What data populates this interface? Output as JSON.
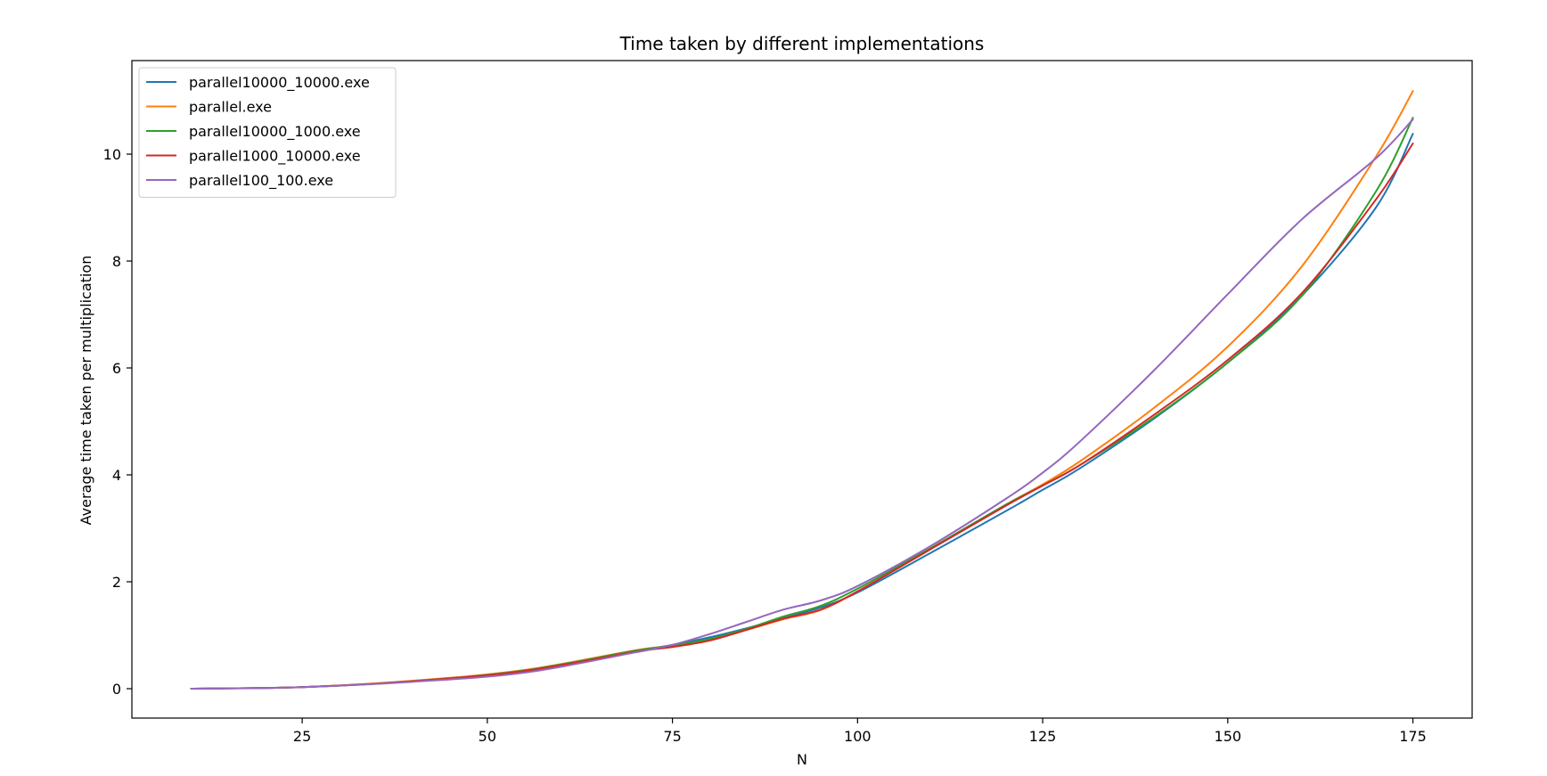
{
  "chart_data": {
    "type": "line",
    "title": "Time taken by different implementations",
    "xlabel": "N",
    "ylabel": "Average time taken per multiplication",
    "xlim": [
      2,
      183
    ],
    "ylim": [
      -0.55,
      11.75
    ],
    "xticks": [
      25,
      50,
      75,
      100,
      125,
      150,
      175
    ],
    "yticks": [
      0,
      2,
      4,
      6,
      8,
      10
    ],
    "grid": false,
    "legend_position": "upper-left",
    "x": [
      10,
      25,
      40,
      55,
      70,
      75,
      80,
      85,
      90,
      95,
      100,
      110,
      120,
      125,
      130,
      140,
      150,
      160,
      170,
      175
    ],
    "series": [
      {
        "name": "parallel10000_10000.exe",
        "color": "#1f77b4",
        "values": [
          0.0,
          0.03,
          0.14,
          0.33,
          0.7,
          0.82,
          0.96,
          1.13,
          1.32,
          1.52,
          1.8,
          2.55,
          3.32,
          3.72,
          4.12,
          5.05,
          6.1,
          7.35,
          9.0,
          10.38
        ]
      },
      {
        "name": "parallel.exe",
        "color": "#ff7f0e",
        "values": [
          0.0,
          0.03,
          0.15,
          0.35,
          0.72,
          0.8,
          0.92,
          1.1,
          1.3,
          1.47,
          1.82,
          2.62,
          3.44,
          3.82,
          4.25,
          5.25,
          6.4,
          7.9,
          9.95,
          11.18
        ]
      },
      {
        "name": "parallel10000_1000.exe",
        "color": "#2ca02c",
        "values": [
          0.0,
          0.03,
          0.14,
          0.34,
          0.71,
          0.81,
          0.93,
          1.12,
          1.35,
          1.55,
          1.87,
          2.64,
          3.44,
          3.8,
          4.18,
          5.07,
          6.1,
          7.35,
          9.3,
          10.68
        ]
      },
      {
        "name": "parallel1000_10000.exe",
        "color": "#d62728",
        "values": [
          0.0,
          0.03,
          0.14,
          0.33,
          0.69,
          0.78,
          0.9,
          1.1,
          1.31,
          1.48,
          1.82,
          2.62,
          3.42,
          3.8,
          4.18,
          5.12,
          6.15,
          7.4,
          9.15,
          10.2
        ]
      },
      {
        "name": "parallel100_100.exe",
        "color": "#9467bd",
        "values": [
          0.0,
          0.03,
          0.13,
          0.3,
          0.68,
          0.82,
          1.02,
          1.25,
          1.48,
          1.65,
          1.92,
          2.68,
          3.55,
          4.04,
          4.62,
          5.95,
          7.38,
          8.78,
          9.92,
          10.65
        ]
      }
    ]
  }
}
